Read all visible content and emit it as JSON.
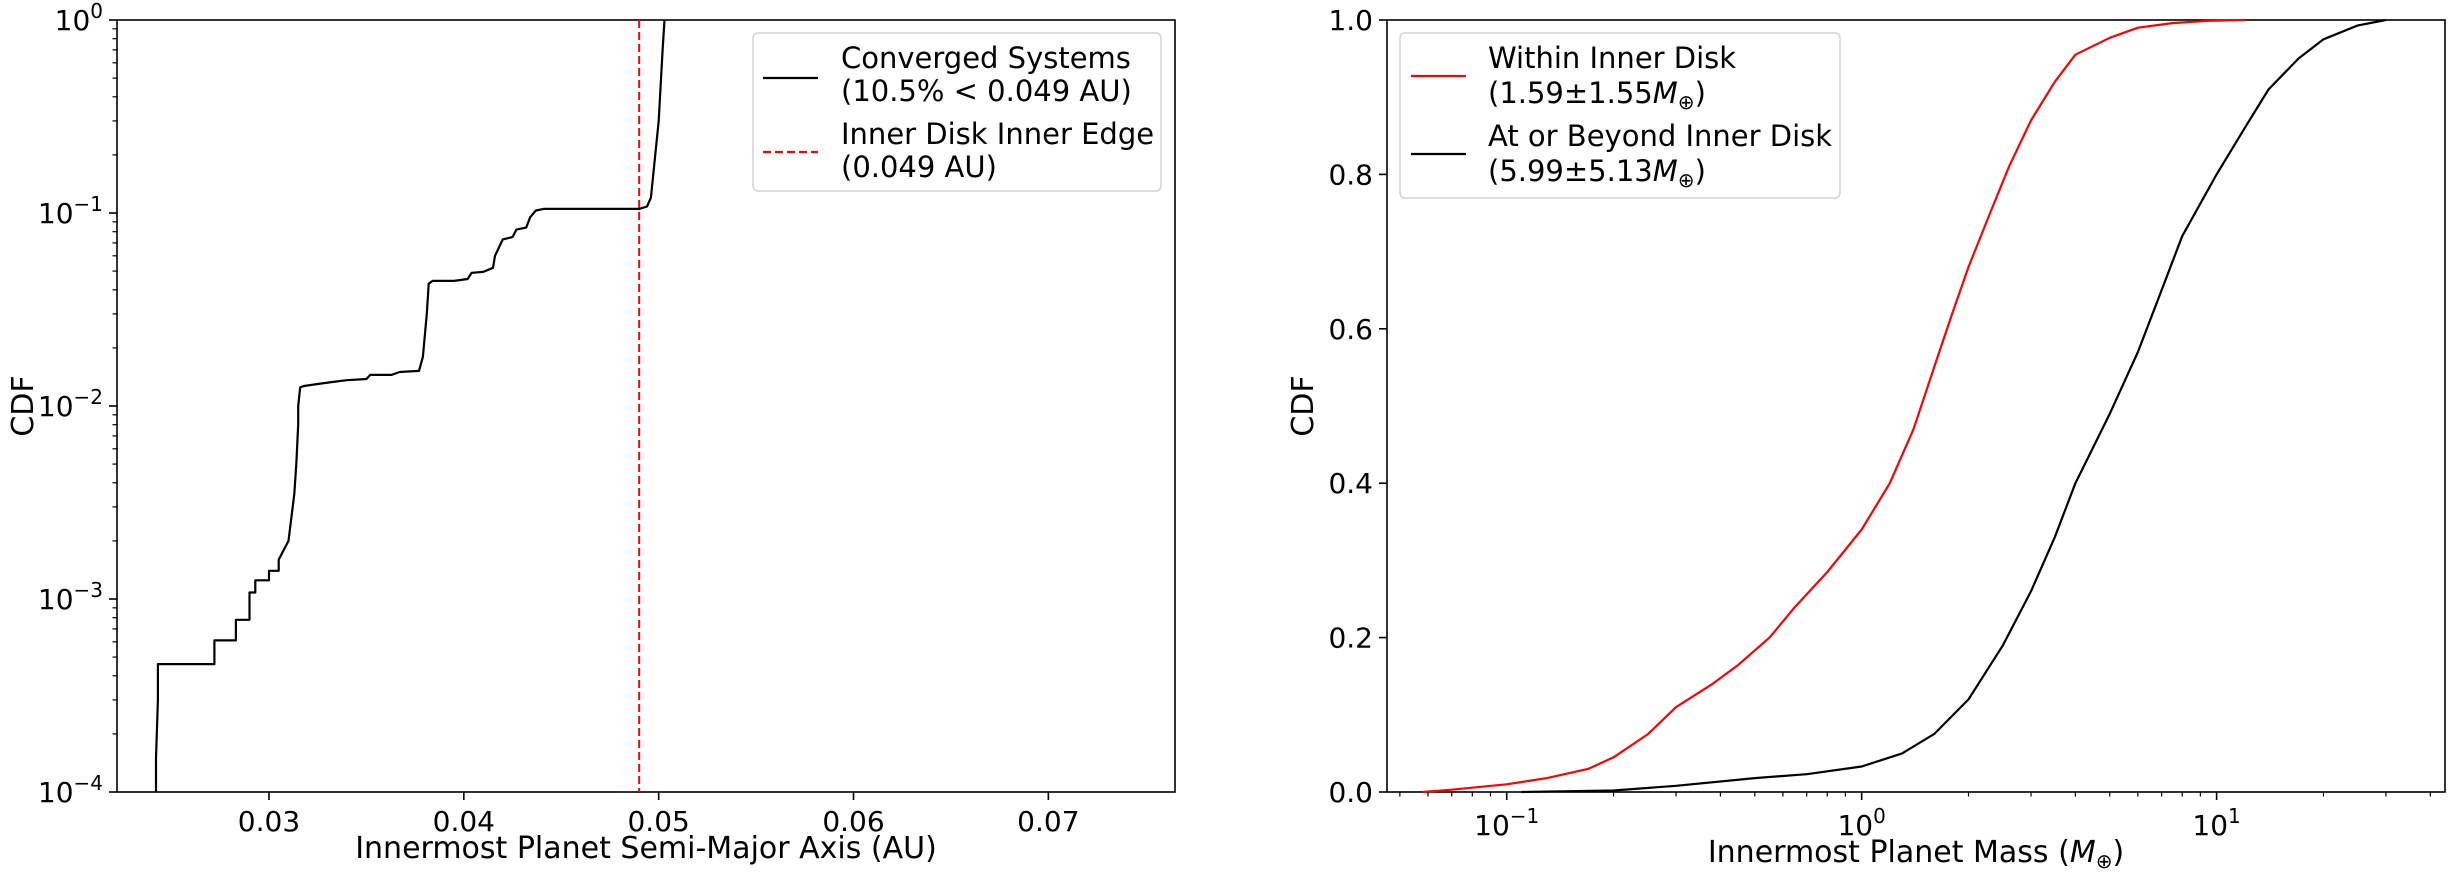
{
  "chart_data": [
    {
      "type": "line",
      "xlabel": "Innermost Planet Semi-Major Axis (AU)",
      "ylabel": "CDF",
      "xlim": [
        0.0222,
        0.0765
      ],
      "ylim": [
        0.0001,
        1
      ],
      "yscale": "log",
      "xticks": [
        {
          "value": 0.03,
          "label": "0.03"
        },
        {
          "value": 0.04,
          "label": "0.04"
        },
        {
          "value": 0.05,
          "label": "0.05"
        },
        {
          "value": 0.06,
          "label": "0.06"
        },
        {
          "value": 0.07,
          "label": "0.07"
        }
      ],
      "yticks": [
        {
          "value": 0.0001,
          "base": "10",
          "exp": "−4"
        },
        {
          "value": 0.001,
          "base": "10",
          "exp": "−3"
        },
        {
          "value": 0.01,
          "base": "10",
          "exp": "−2"
        },
        {
          "value": 0.1,
          "base": "10",
          "exp": "−1"
        },
        {
          "value": 1,
          "base": "10",
          "exp": "0"
        }
      ],
      "legend_position": "top-right",
      "legend": [
        {
          "line1": "Converged Systems",
          "line2": "(10.5% < 0.049 AU)",
          "color": "#000000",
          "dash": false
        },
        {
          "line1": "Inner Disk Inner Edge",
          "line2": "(0.049 AU)",
          "color": "#ff0000",
          "dash": true
        }
      ],
      "series": [
        {
          "name": "Converged Systems",
          "color": "#000000",
          "x": [
            0.0242,
            0.0242,
            0.0243,
            0.0243,
            0.0272,
            0.0272,
            0.0283,
            0.0283,
            0.029,
            0.029,
            0.0293,
            0.0293,
            0.03,
            0.03,
            0.0305,
            0.0305,
            0.031,
            0.0313,
            0.0314,
            0.0315,
            0.0315,
            0.0316,
            0.0318,
            0.0325,
            0.0332,
            0.034,
            0.035,
            0.0352,
            0.0363,
            0.0367,
            0.0377,
            0.0379,
            0.0381,
            0.0382,
            0.0384,
            0.0395,
            0.0402,
            0.0404,
            0.041,
            0.0415,
            0.0416,
            0.042,
            0.0425,
            0.0427,
            0.0432,
            0.0434,
            0.0437,
            0.0441,
            0.046,
            0.049,
            0.0494,
            0.0496,
            0.05,
            0.0502,
            0.0503
          ],
          "y": [
            0.0001,
            0.00015,
            0.0003,
            0.00046,
            0.00046,
            0.00061,
            0.00061,
            0.00078,
            0.00078,
            0.00108,
            0.00108,
            0.00125,
            0.00125,
            0.0014,
            0.0014,
            0.0016,
            0.002,
            0.0035,
            0.005,
            0.008,
            0.01,
            0.0125,
            0.0127,
            0.013,
            0.0133,
            0.0136,
            0.0138,
            0.0145,
            0.0145,
            0.015,
            0.0152,
            0.018,
            0.03,
            0.043,
            0.0445,
            0.0445,
            0.0455,
            0.049,
            0.0495,
            0.052,
            0.06,
            0.073,
            0.075,
            0.082,
            0.084,
            0.095,
            0.103,
            0.105,
            0.105,
            0.105,
            0.108,
            0.12,
            0.3,
            0.7,
            1.0
          ]
        }
      ],
      "vlines": [
        {
          "name": "Inner Disk Inner Edge",
          "x": 0.049,
          "color": "#ff0000",
          "dash": true
        }
      ]
    },
    {
      "type": "line",
      "xlabel": "Innermost Planet Mass (M⊕)",
      "ylabel": "CDF",
      "xscale": "log",
      "xlim": [
        0.046,
        44
      ],
      "ylim": [
        0,
        1
      ],
      "xticks": [
        {
          "value": 0.1,
          "base": "10",
          "exp": "−1"
        },
        {
          "value": 1,
          "base": "10",
          "exp": "0"
        },
        {
          "value": 10,
          "base": "10",
          "exp": "1"
        }
      ],
      "yticks": [
        {
          "value": 0.0,
          "label": "0.0"
        },
        {
          "value": 0.2,
          "label": "0.2"
        },
        {
          "value": 0.4,
          "label": "0.4"
        },
        {
          "value": 0.6,
          "label": "0.6"
        },
        {
          "value": 0.8,
          "label": "0.8"
        },
        {
          "value": 1.0,
          "label": "1.0"
        }
      ],
      "legend_position": "top-left",
      "legend": [
        {
          "line1": "Within Inner Disk",
          "line2": "(1.59±1.55M⊕)",
          "color": "#ff0000",
          "dash": false
        },
        {
          "line1": "At or Beyond Inner Disk",
          "line2": "(5.99±5.13M⊕)",
          "color": "#000000",
          "dash": false
        }
      ],
      "series": [
        {
          "name": "Within Inner Disk",
          "color": "#ff0000",
          "x": [
            0.058,
            0.07,
            0.1,
            0.13,
            0.17,
            0.2,
            0.25,
            0.3,
            0.38,
            0.45,
            0.55,
            0.65,
            0.8,
            1.0,
            1.2,
            1.4,
            1.6,
            1.8,
            2.0,
            2.3,
            2.6,
            3.0,
            3.5,
            4.0,
            5.0,
            6.0,
            7.5,
            9.5,
            12.0
          ],
          "y": [
            0.0,
            0.003,
            0.01,
            0.018,
            0.03,
            0.045,
            0.075,
            0.11,
            0.14,
            0.165,
            0.2,
            0.24,
            0.285,
            0.34,
            0.4,
            0.47,
            0.55,
            0.62,
            0.68,
            0.75,
            0.81,
            0.87,
            0.92,
            0.955,
            0.977,
            0.99,
            0.996,
            0.999,
            1.0
          ]
        },
        {
          "name": "At or Beyond Inner Disk",
          "color": "#000000",
          "x": [
            0.11,
            0.2,
            0.3,
            0.5,
            0.7,
            1.0,
            1.3,
            1.6,
            2.0,
            2.5,
            3.0,
            3.5,
            4.0,
            5.0,
            6.0,
            7.0,
            8.0,
            10.0,
            12.0,
            14.0,
            17.0,
            20.0,
            25.0,
            30.0
          ],
          "y": [
            0.0,
            0.002,
            0.008,
            0.018,
            0.023,
            0.033,
            0.05,
            0.075,
            0.12,
            0.19,
            0.26,
            0.33,
            0.4,
            0.49,
            0.57,
            0.65,
            0.72,
            0.8,
            0.86,
            0.91,
            0.95,
            0.975,
            0.993,
            1.0
          ]
        }
      ]
    }
  ]
}
